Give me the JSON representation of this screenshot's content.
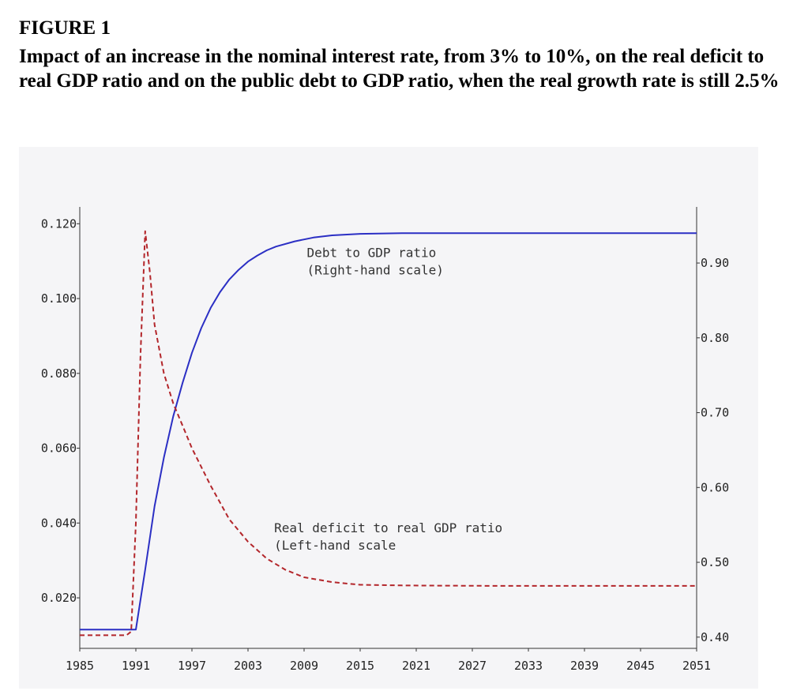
{
  "figure": {
    "label": "FIGURE 1",
    "title": "Impact of an increase in the nominal interest rate, from 3% to 10%, on the real deficit to real GDP ratio and on the public debt to GDP ratio, when the real growth rate is still 2.5%"
  },
  "chart_data": {
    "type": "line",
    "title": "",
    "xlabel": "",
    "ylabel": "",
    "x_ticks": [
      "1985",
      "1991",
      "1997",
      "2003",
      "2009",
      "2015",
      "2021",
      "2027",
      "2033",
      "2039",
      "2045",
      "2051"
    ],
    "xlim": [
      1985,
      2051
    ],
    "y_left": {
      "ticks": [
        "0.120",
        "0.100",
        "0.080",
        "0.060",
        "0.040",
        "0.020"
      ],
      "ylim": [
        0.0065,
        0.1245
      ]
    },
    "y_right": {
      "ticks": [
        "0.90",
        "0.80",
        "0.70",
        "0.60",
        "0.50",
        "0.40"
      ],
      "ylim": [
        0.385,
        0.975
      ]
    },
    "grid": false,
    "series": [
      {
        "name": "Debt to GDP ratio",
        "axis": "right",
        "color": "#2b2fc4",
        "style": "solid",
        "x": [
          1985,
          1990,
          1991,
          1992,
          1993,
          1994,
          1995,
          1996,
          1997,
          1998,
          1999,
          2000,
          2001,
          2002,
          2003,
          2004,
          2005,
          2006,
          2008,
          2010,
          2012,
          2015,
          2020,
          2030,
          2040,
          2051
        ],
        "y": [
          0.41,
          0.41,
          0.41,
          0.49,
          0.575,
          0.64,
          0.695,
          0.74,
          0.78,
          0.813,
          0.84,
          0.861,
          0.878,
          0.891,
          0.902,
          0.91,
          0.917,
          0.922,
          0.929,
          0.934,
          0.937,
          0.939,
          0.94,
          0.94,
          0.94,
          0.94
        ]
      },
      {
        "name": "Real deficit to real GDP ratio",
        "axis": "left",
        "color": "#b3262b",
        "style": "dashed",
        "x": [
          1985,
          1990,
          1990.5,
          1991,
          1991.5,
          1992,
          1992.5,
          1993,
          1994,
          1995,
          1996,
          1997,
          1998,
          1999,
          2000,
          2001,
          2003,
          2005,
          2007,
          2009,
          2012,
          2015,
          2020,
          2030,
          2040,
          2051
        ],
        "y": [
          0.01,
          0.01,
          0.011,
          0.04,
          0.085,
          0.118,
          0.107,
          0.093,
          0.08,
          0.072,
          0.066,
          0.06,
          0.055,
          0.05,
          0.0455,
          0.041,
          0.035,
          0.0305,
          0.0275,
          0.0255,
          0.0242,
          0.0235,
          0.0233,
          0.0232,
          0.0232,
          0.0232
        ]
      }
    ],
    "annotations": [
      {
        "lines": [
          "Debt to GDP ratio",
          "(Right-hand scale)"
        ],
        "x": 2009.3,
        "y_right": 0.908
      },
      {
        "lines": [
          "Real deficit to real GDP ratio",
          "(Left-hand scale"
        ],
        "x": 2005.8,
        "y_left": 0.0375
      }
    ]
  }
}
